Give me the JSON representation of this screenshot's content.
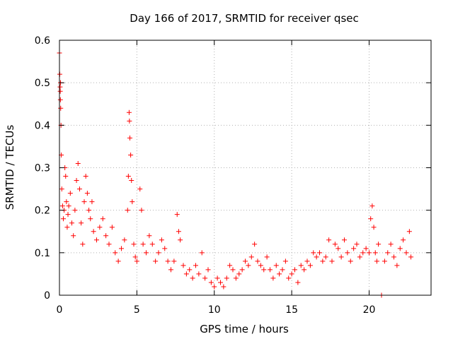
{
  "chart_data": {
    "type": "scatter",
    "title": "Day 166 of 2017, SRMTID for receiver qsec",
    "xlabel": "GPS time / hours",
    "ylabel": "SRMTID / TECUs",
    "xlim": [
      0,
      24
    ],
    "ylim": [
      0,
      0.6
    ],
    "grid": true,
    "marker": "+",
    "colors": {
      "series": "#ff0000",
      "grid": "#b0b0b0",
      "frame": "#000000"
    },
    "x_ticks": [
      0,
      5,
      10,
      15,
      20
    ],
    "x_tick_labels": [
      "0",
      "5",
      "10",
      "15",
      "20"
    ],
    "y_ticks": [
      0,
      0.1,
      0.2,
      0.3,
      0.4,
      0.5,
      0.6
    ],
    "y_tick_labels": [
      "0",
      "0.1",
      "0.2",
      "0.3",
      "0.4",
      "0.5",
      "0.6"
    ],
    "series": [
      {
        "name": "SRMTID",
        "points": [
          [
            0.0,
            0.57
          ],
          [
            0.02,
            0.52
          ],
          [
            0.04,
            0.49
          ],
          [
            0.06,
            0.46
          ],
          [
            0.08,
            0.44
          ],
          [
            0.1,
            0.4
          ],
          [
            0.05,
            0.48
          ],
          [
            0.07,
            0.5
          ],
          [
            0.12,
            0.33
          ],
          [
            0.15,
            0.25
          ],
          [
            0.2,
            0.21
          ],
          [
            0.25,
            0.18
          ],
          [
            0.3,
            0.2
          ],
          [
            0.35,
            0.3
          ],
          [
            0.4,
            0.28
          ],
          [
            0.45,
            0.22
          ],
          [
            0.5,
            0.16
          ],
          [
            0.55,
            0.19
          ],
          [
            0.6,
            0.21
          ],
          [
            0.7,
            0.24
          ],
          [
            0.8,
            0.17
          ],
          [
            0.9,
            0.14
          ],
          [
            1.0,
            0.2
          ],
          [
            1.1,
            0.27
          ],
          [
            1.2,
            0.31
          ],
          [
            1.3,
            0.25
          ],
          [
            1.4,
            0.17
          ],
          [
            1.5,
            0.12
          ],
          [
            1.6,
            0.22
          ],
          [
            1.7,
            0.28
          ],
          [
            1.8,
            0.24
          ],
          [
            1.9,
            0.2
          ],
          [
            2.0,
            0.18
          ],
          [
            2.1,
            0.22
          ],
          [
            2.2,
            0.15
          ],
          [
            2.4,
            0.13
          ],
          [
            2.6,
            0.16
          ],
          [
            2.8,
            0.18
          ],
          [
            3.0,
            0.14
          ],
          [
            3.2,
            0.12
          ],
          [
            3.4,
            0.16
          ],
          [
            3.6,
            0.1
          ],
          [
            3.8,
            0.08
          ],
          [
            4.0,
            0.11
          ],
          [
            4.2,
            0.13
          ],
          [
            4.4,
            0.2
          ],
          [
            4.45,
            0.28
          ],
          [
            4.5,
            0.43
          ],
          [
            4.52,
            0.41
          ],
          [
            4.55,
            0.37
          ],
          [
            4.6,
            0.33
          ],
          [
            4.65,
            0.27
          ],
          [
            4.7,
            0.22
          ],
          [
            4.8,
            0.12
          ],
          [
            4.9,
            0.09
          ],
          [
            5.0,
            0.08
          ],
          [
            5.2,
            0.25
          ],
          [
            5.3,
            0.2
          ],
          [
            5.4,
            0.12
          ],
          [
            5.6,
            0.1
          ],
          [
            5.8,
            0.14
          ],
          [
            6.0,
            0.12
          ],
          [
            6.2,
            0.08
          ],
          [
            6.4,
            0.1
          ],
          [
            6.6,
            0.13
          ],
          [
            6.8,
            0.11
          ],
          [
            7.0,
            0.08
          ],
          [
            7.2,
            0.06
          ],
          [
            7.4,
            0.08
          ],
          [
            7.6,
            0.19
          ],
          [
            7.7,
            0.15
          ],
          [
            7.8,
            0.13
          ],
          [
            8.0,
            0.07
          ],
          [
            8.2,
            0.05
          ],
          [
            8.4,
            0.06
          ],
          [
            8.6,
            0.04
          ],
          [
            8.8,
            0.07
          ],
          [
            9.0,
            0.05
          ],
          [
            9.2,
            0.1
          ],
          [
            9.4,
            0.04
          ],
          [
            9.6,
            0.06
          ],
          [
            9.8,
            0.03
          ],
          [
            10.0,
            0.02
          ],
          [
            10.2,
            0.04
          ],
          [
            10.4,
            0.03
          ],
          [
            10.6,
            0.02
          ],
          [
            10.8,
            0.04
          ],
          [
            11.0,
            0.07
          ],
          [
            11.2,
            0.06
          ],
          [
            11.4,
            0.04
          ],
          [
            11.6,
            0.05
          ],
          [
            11.8,
            0.06
          ],
          [
            12.0,
            0.08
          ],
          [
            12.2,
            0.07
          ],
          [
            12.4,
            0.09
          ],
          [
            12.6,
            0.12
          ],
          [
            12.8,
            0.08
          ],
          [
            13.0,
            0.07
          ],
          [
            13.2,
            0.06
          ],
          [
            13.4,
            0.09
          ],
          [
            13.6,
            0.06
          ],
          [
            13.8,
            0.04
          ],
          [
            14.0,
            0.07
          ],
          [
            14.2,
            0.05
          ],
          [
            14.4,
            0.06
          ],
          [
            14.6,
            0.08
          ],
          [
            14.8,
            0.04
          ],
          [
            15.0,
            0.05
          ],
          [
            15.2,
            0.06
          ],
          [
            15.4,
            0.03
          ],
          [
            15.6,
            0.07
          ],
          [
            15.8,
            0.06
          ],
          [
            16.0,
            0.08
          ],
          [
            16.2,
            0.07
          ],
          [
            16.4,
            0.1
          ],
          [
            16.6,
            0.09
          ],
          [
            16.8,
            0.1
          ],
          [
            17.0,
            0.08
          ],
          [
            17.2,
            0.09
          ],
          [
            17.4,
            0.13
          ],
          [
            17.6,
            0.08
          ],
          [
            17.8,
            0.12
          ],
          [
            18.0,
            0.11
          ],
          [
            18.2,
            0.09
          ],
          [
            18.4,
            0.13
          ],
          [
            18.6,
            0.1
          ],
          [
            18.8,
            0.08
          ],
          [
            19.0,
            0.11
          ],
          [
            19.2,
            0.12
          ],
          [
            19.4,
            0.09
          ],
          [
            19.6,
            0.1
          ],
          [
            19.8,
            0.11
          ],
          [
            20.0,
            0.1
          ],
          [
            20.1,
            0.18
          ],
          [
            20.2,
            0.21
          ],
          [
            20.3,
            0.16
          ],
          [
            20.4,
            0.1
          ],
          [
            20.5,
            0.08
          ],
          [
            20.6,
            0.12
          ],
          [
            20.8,
            0.0
          ],
          [
            21.0,
            0.08
          ],
          [
            21.2,
            0.1
          ],
          [
            21.4,
            0.12
          ],
          [
            21.6,
            0.09
          ],
          [
            21.8,
            0.07
          ],
          [
            22.0,
            0.11
          ],
          [
            22.2,
            0.13
          ],
          [
            22.4,
            0.1
          ],
          [
            22.6,
            0.15
          ],
          [
            22.7,
            0.09
          ]
        ]
      }
    ]
  }
}
